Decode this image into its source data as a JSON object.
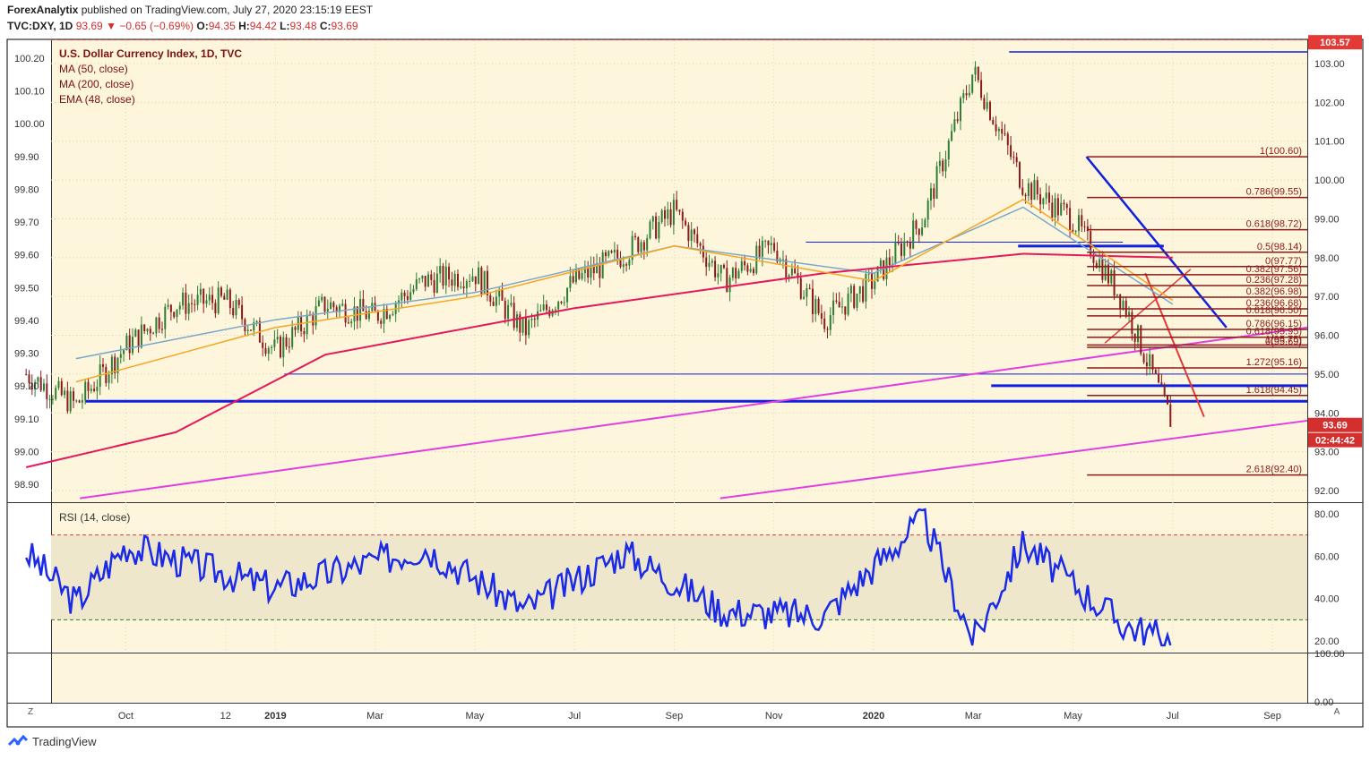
{
  "header": {
    "publisher": "ForexAnalytix",
    "published_text": "published on TradingView.com, July 27, 2020 23:15:19 EEST",
    "symbol": "TVC:DXY, 1D",
    "last": "93.69",
    "change": "−0.65 (−0.69%)",
    "o_label": "O:",
    "o_val": "94.35",
    "h_label": "H:",
    "h_val": "94.42",
    "l_label": "L:",
    "l_val": "93.48",
    "c_label": "C:",
    "c_val": "93.69"
  },
  "legend": {
    "title": "U.S. Dollar Currency Index, 1D, TVC",
    "items": [
      "MA (50, close)",
      "MA (200, close)",
      "EMA (48, close)"
    ]
  },
  "rsi_label": "RSI (14, close)",
  "colors": {
    "bg": "#fdf6dc",
    "candle_up": "#2e7d32",
    "candle_down": "#8b1a1a",
    "ma50": "#7aa7c7",
    "ma200": "#e5195a",
    "ema48": "#f5a623",
    "blue_line": "#1020e0",
    "magenta": "#e040e0",
    "fib": "#8b1a1a",
    "rsi": "#1a2ae6"
  },
  "footer": {
    "brand": "TradingView"
  },
  "chart_data": [
    {
      "type": "line",
      "title": "U.S. Dollar Currency Index, 1D, TVC",
      "x_ticks": [
        "Oct",
        "12",
        "2019",
        "Mar",
        "May",
        "Jul",
        "Sep",
        "Nov",
        "2020",
        "Mar",
        "May",
        "Jul",
        "Sep"
      ],
      "right_axis_ticks": [
        "103.00",
        "102.00",
        "101.00",
        "100.00",
        "99.00",
        "98.00",
        "97.00",
        "96.00",
        "95.00",
        "94.00",
        "93.00",
        "92.00"
      ],
      "left_axis_ticks": [
        "100.20",
        "100.10",
        "100.00",
        "99.90",
        "99.80",
        "99.70",
        "99.60",
        "99.50",
        "99.40",
        "99.30",
        "99.20",
        "99.10",
        "99.00",
        "98.90"
      ],
      "ylim": [
        91.7,
        103.6
      ],
      "price_labels": {
        "top": "103.57",
        "last": "93.69",
        "countdown": "02:44:42"
      },
      "fib_levels": [
        {
          "label": "1(100.60)",
          "value": 100.6
        },
        {
          "label": "0.786(99.55)",
          "value": 99.55
        },
        {
          "label": "0.618(98.72)",
          "value": 98.72
        },
        {
          "label": "0.5(98.14)",
          "value": 98.14
        },
        {
          "label": "0(97.77)",
          "value": 97.77
        },
        {
          "label": "0.382(97.56)",
          "value": 97.56
        },
        {
          "label": "0.236(97.28)",
          "value": 97.28
        },
        {
          "label": "0.382(96.98)",
          "value": 96.98
        },
        {
          "label": "0.236(96.68)",
          "value": 96.68
        },
        {
          "label": "0.618(96.50)",
          "value": 96.5
        },
        {
          "label": "0.786(96.15)",
          "value": 96.15
        },
        {
          "label": "0.618(95.95)",
          "value": 95.95
        },
        {
          "label": "1(95.75)",
          "value": 95.75
        },
        {
          "label": "0(95.69)",
          "value": 95.69
        },
        {
          "label": "1.272(95.16)",
          "value": 95.16
        },
        {
          "label": "1.618(94.45)",
          "value": 94.45
        },
        {
          "label": "2.618(92.40)",
          "value": 92.4
        }
      ],
      "series": [
        {
          "name": "DXY",
          "points": [
            [
              "Aug 2018",
              95.0
            ],
            [
              "Sep 2018",
              94.2
            ],
            [
              "Oct 2018",
              95.7
            ],
            [
              "Nov 2018",
              96.8
            ],
            [
              "Dec 2018",
              96.9
            ],
            [
              "Jan 2019",
              95.6
            ],
            [
              "Feb 2019",
              96.8
            ],
            [
              "Mar 2019",
              96.5
            ],
            [
              "Apr 2019",
              97.4
            ],
            [
              "May 2019",
              97.6
            ],
            [
              "Jun 2019",
              96.1
            ],
            [
              "Jul 2019",
              97.4
            ],
            [
              "Aug 2019",
              98.1
            ],
            [
              "Sep 2019",
              99.2
            ],
            [
              "Oct 2019",
              97.4
            ],
            [
              "Nov 2019",
              98.3
            ],
            [
              "Dec 2019",
              96.4
            ],
            [
              "Jan 2020",
              97.4
            ],
            [
              "Feb 2020",
              99.0
            ],
            [
              "Mar 2020",
              102.8
            ],
            [
              "Apr 2020",
              99.9
            ],
            [
              "May 2020",
              99.0
            ],
            [
              "Jun 2020",
              96.9
            ],
            [
              "Jul 2020",
              93.69
            ]
          ]
        },
        {
          "name": "MA (50, close)",
          "points": [
            [
              "Sep 2018",
              95.4
            ],
            [
              "Jan 2019",
              96.4
            ],
            [
              "May 2019",
              97.1
            ],
            [
              "Sep 2019",
              98.3
            ],
            [
              "Jan 2020",
              97.6
            ],
            [
              "Apr 2020",
              99.3
            ],
            [
              "Jul 2020",
              96.8
            ]
          ]
        },
        {
          "name": "MA (200, close)",
          "points": [
            [
              "Aug 2018",
              92.6
            ],
            [
              "Nov 2018",
              93.5
            ],
            [
              "Feb 2019",
              95.5
            ],
            [
              "Jul 2019",
              96.7
            ],
            [
              "Dec 2019",
              97.6
            ],
            [
              "Apr 2020",
              98.1
            ],
            [
              "Jul 2020",
              98.0
            ]
          ]
        },
        {
          "name": "EMA (48, close)",
          "points": [
            [
              "Sep 2018",
              94.8
            ],
            [
              "Jan 2019",
              96.2
            ],
            [
              "May 2019",
              97.0
            ],
            [
              "Sep 2019",
              98.3
            ],
            [
              "Jan 2020",
              97.4
            ],
            [
              "Apr 2020",
              99.5
            ],
            [
              "Jul 2020",
              96.9
            ]
          ]
        }
      ]
    },
    {
      "type": "line",
      "title": "RSI (14, close)",
      "right_axis_ticks": [
        "80.00",
        "60.00",
        "40.00",
        "20.00"
      ],
      "ylim": [
        15,
        85
      ],
      "bands": {
        "upper": 70,
        "lower": 30
      },
      "series": [
        {
          "name": "RSI (14, close)",
          "points": [
            [
              "Aug 2018",
              62
            ],
            [
              "Sep 2018",
              38
            ],
            [
              "Oct 2018",
              65
            ],
            [
              "Jan 2019",
              45
            ],
            [
              "Apr 2019",
              64
            ],
            [
              "Jun 2019",
              35
            ],
            [
              "Aug 2019",
              62
            ],
            [
              "Oct 2019",
              34
            ],
            [
              "Dec 2019",
              32
            ],
            [
              "Feb 2020",
              78
            ],
            [
              "Mar 2020",
              20
            ],
            [
              "Apr 2020",
              66
            ],
            [
              "Jun 2020",
              28
            ],
            [
              "Jul 2020",
              20
            ]
          ]
        }
      ]
    }
  ]
}
